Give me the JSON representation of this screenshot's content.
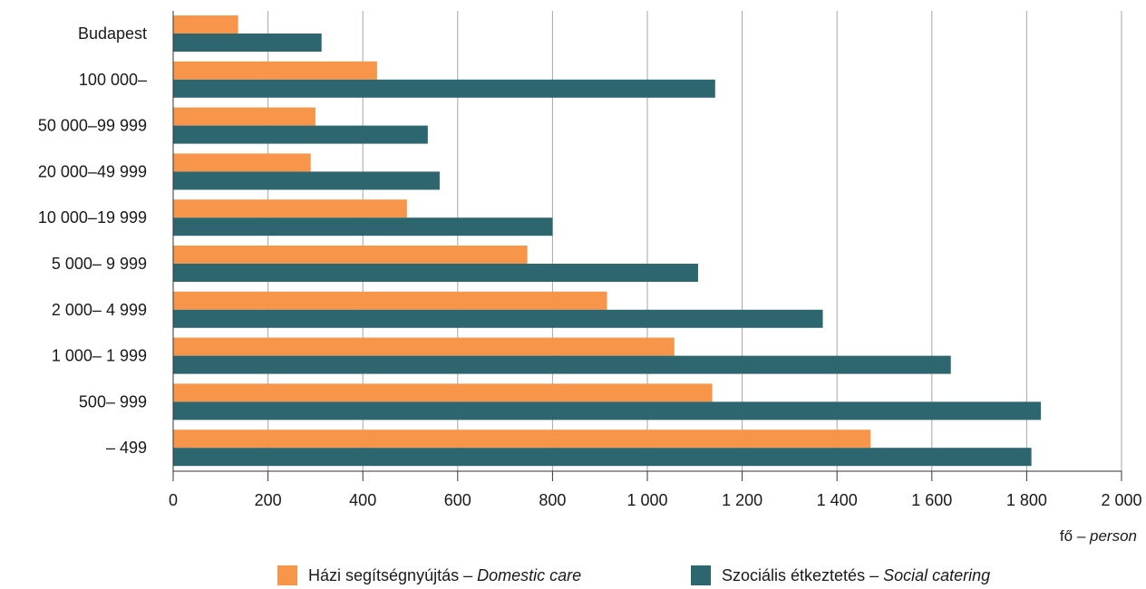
{
  "chart_data": {
    "type": "bar",
    "orientation": "horizontal",
    "categories": [
      "Budapest",
      "100 000–",
      "50 000–99 999",
      "20 000–49 999",
      "10 000–19 999",
      "5 000– 9 999",
      "2 000– 4 999",
      "1 000– 1 999",
      "500–   999",
      "–   499"
    ],
    "series": [
      {
        "name": "Házi segítségnyújtás",
        "name_en": "Domestic care",
        "color": "#F7964A",
        "values": [
          137,
          430,
          300,
          290,
          493,
          747,
          915,
          1057,
          1137,
          1471
        ]
      },
      {
        "name": "Szociális étkeztetés",
        "name_en": "Social catering",
        "color": "#2E6670",
        "values": [
          313,
          1143,
          537,
          562,
          800,
          1107,
          1370,
          1640,
          1830,
          1810
        ]
      }
    ],
    "xlim": [
      0,
      2000
    ],
    "xticks": [
      0,
      200,
      400,
      600,
      800,
      1000,
      1200,
      1400,
      1600,
      1800,
      2000
    ],
    "xtick_labels": [
      "0",
      "200",
      "400",
      "600",
      "800",
      "1 000",
      "1 200",
      "1 400",
      "1 600",
      "1 800",
      "2 000"
    ],
    "unit_label": "fő",
    "unit_label_en": "person",
    "grid": "vertical",
    "legend_position": "bottom"
  }
}
